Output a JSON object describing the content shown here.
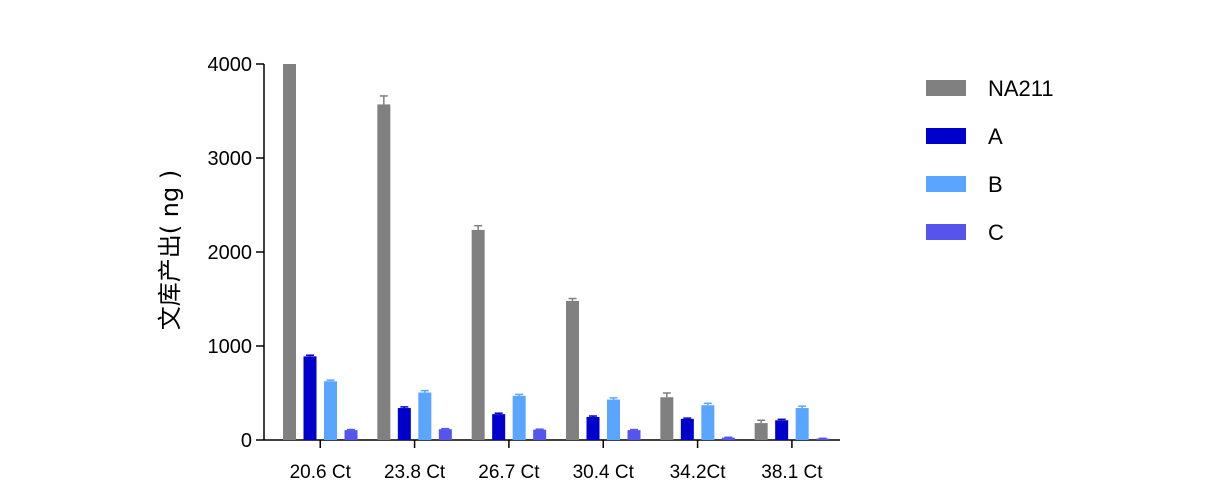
{
  "chart_data": {
    "type": "bar",
    "ylabel": "文库产出( ng )",
    "ylim": [
      0,
      4000
    ],
    "yticks": [
      0,
      1000,
      2000,
      3000,
      4000
    ],
    "categories": [
      "20.6 Ct",
      "23.8 Ct",
      "26.7 Ct",
      "30.4 Ct",
      "34.2Ct",
      "38.1 Ct"
    ],
    "series": [
      {
        "name": "NA211",
        "color": "#808080",
        "values": [
          4000,
          3570,
          2235,
          1480,
          455,
          180
        ],
        "errors": [
          0,
          90,
          45,
          25,
          45,
          30
        ]
      },
      {
        "name": "A",
        "color": "#0000CC",
        "values": [
          890,
          340,
          275,
          245,
          225,
          210
        ],
        "errors": [
          12,
          12,
          10,
          10,
          8,
          10
        ]
      },
      {
        "name": "B",
        "color": "#5AA5FF",
        "values": [
          625,
          505,
          470,
          430,
          370,
          340
        ],
        "errors": [
          12,
          20,
          15,
          18,
          20,
          20
        ]
      },
      {
        "name": "C",
        "color": "#5555EE",
        "values": [
          105,
          115,
          110,
          105,
          25,
          15
        ],
        "errors": [
          6,
          6,
          5,
          6,
          4,
          3
        ]
      }
    ],
    "legend_position": "right",
    "grid": false,
    "error_bars": true
  }
}
